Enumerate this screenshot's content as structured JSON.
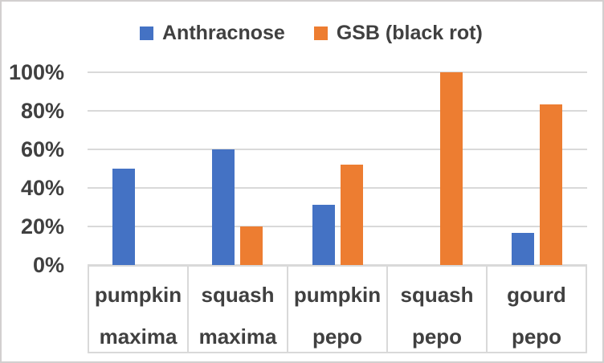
{
  "chart_data": {
    "type": "bar",
    "title": "",
    "xlabel": "",
    "ylabel": "",
    "legend_position": "top-center",
    "grid": true,
    "categories": [
      {
        "line1": "pumpkin",
        "line2": "maxima"
      },
      {
        "line1": "squash",
        "line2": "maxima"
      },
      {
        "line1": "pumpkin",
        "line2": "pepo"
      },
      {
        "line1": "squash",
        "line2": "pepo"
      },
      {
        "line1": "gourd",
        "line2": "pepo"
      }
    ],
    "series": [
      {
        "name": "Anthracnose",
        "color": "#4472C4",
        "values": [
          50,
          60,
          31.3,
          0,
          16.7
        ]
      },
      {
        "name": "GSB (black rot)",
        "color": "#ED7D31",
        "values": [
          0,
          20,
          52,
          100,
          83.3
        ]
      }
    ],
    "y_axis": {
      "min": 0,
      "max": 100,
      "unit": "%",
      "ticks": [
        {
          "label": "0%",
          "value": 0
        },
        {
          "label": "20%",
          "value": 20
        },
        {
          "label": "40%",
          "value": 40
        },
        {
          "label": "60%",
          "value": 60
        },
        {
          "label": "80%",
          "value": 80
        },
        {
          "label": "100%",
          "value": 100
        }
      ]
    }
  },
  "colors": {
    "text": "#404040",
    "gridline": "#d9d9d9",
    "table_border": "#d9d9d9",
    "figure_border": "#d2cfcf",
    "background": "#ffffff"
  }
}
